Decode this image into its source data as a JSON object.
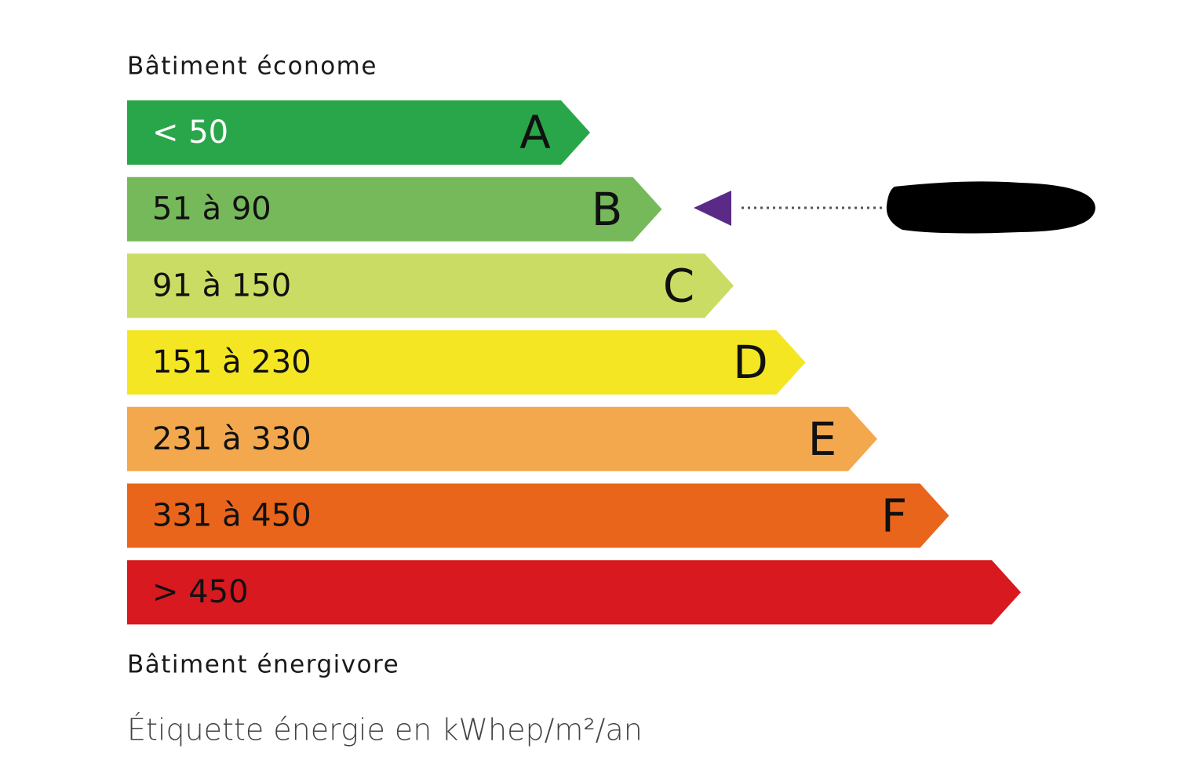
{
  "header": {
    "title": "Bâtiment économe"
  },
  "rows": [
    {
      "range": "< 50",
      "letter": "A",
      "color": "#2aa64a"
    },
    {
      "range": "51 à 90",
      "letter": "B",
      "color": "#76b95b"
    },
    {
      "range": "91 à 150",
      "letter": "C",
      "color": "#cbdc64"
    },
    {
      "range": "151 à 230",
      "letter": "D",
      "color": "#f4e622"
    },
    {
      "range": "231 à 330",
      "letter": "E",
      "color": "#f3a84d"
    },
    {
      "range": "331 à 450",
      "letter": "F",
      "color": "#e9651b"
    },
    {
      "range": "> 450",
      "color": "#d8191f"
    }
  ],
  "footer": {
    "title": "Bâtiment énergivore",
    "caption": "Étiquette énergie en kWhep/m²/an"
  }
}
